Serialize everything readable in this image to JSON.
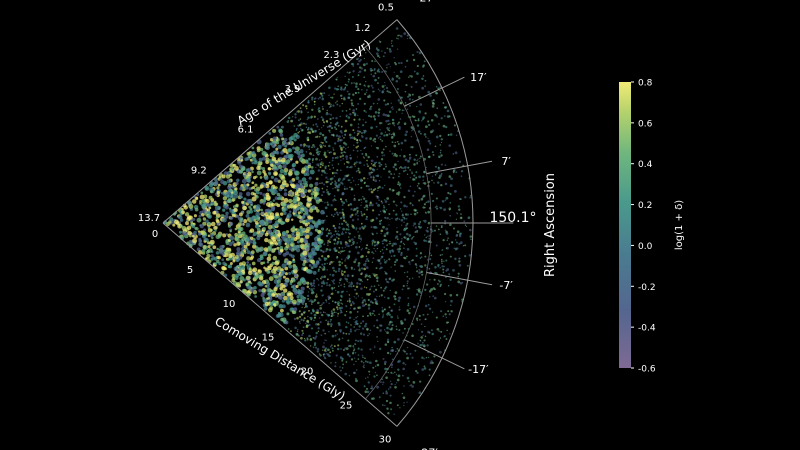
{
  "chart_data": {
    "type": "scatter",
    "subtype": "polar-wedge-density",
    "ra_axis": {
      "label": "Right Ascension",
      "center_label": "150.1°",
      "ticks": [
        "27′",
        "17′",
        "7′",
        "-7′",
        "-17′",
        "-27′"
      ],
      "tick_values_arcmin": [
        27,
        17,
        7,
        -7,
        -17,
        -27
      ],
      "range_arcmin": [
        -27,
        27
      ]
    },
    "age_axis": {
      "label": "Age of the Universe (Gyr)",
      "ticks": [
        "13.7",
        "9.2",
        "6.1",
        "3.9",
        "2.3",
        "1.2",
        "0.5"
      ],
      "tick_distance_gly": [
        0,
        6,
        12,
        18,
        23,
        27,
        30
      ]
    },
    "distance_axis": {
      "label": "Comoving Distance (Gly)",
      "ticks": [
        "0",
        "5",
        "10",
        "15",
        "20",
        "25",
        "30"
      ],
      "tick_values": [
        0,
        5,
        10,
        15,
        20,
        25,
        30
      ],
      "range": [
        0,
        30
      ]
    },
    "colorbar": {
      "label": "log(1 + δ)",
      "ticks": [
        "0.8",
        "0.6",
        "0.4",
        "0.2",
        "0.0",
        "-0.2",
        "-0.4",
        "-0.6"
      ],
      "tick_values": [
        0.8,
        0.6,
        0.4,
        0.2,
        0.0,
        -0.2,
        -0.4,
        -0.6
      ],
      "range": [
        -0.6,
        0.8
      ],
      "colormap": "viridis",
      "stops": [
        "#7e6a94",
        "#54668f",
        "#4a7c90",
        "#4a9a8c",
        "#6fb67e",
        "#b7d36b",
        "#f2ec76"
      ]
    },
    "background": "#000000",
    "axis_color": "#9a9a9a"
  }
}
